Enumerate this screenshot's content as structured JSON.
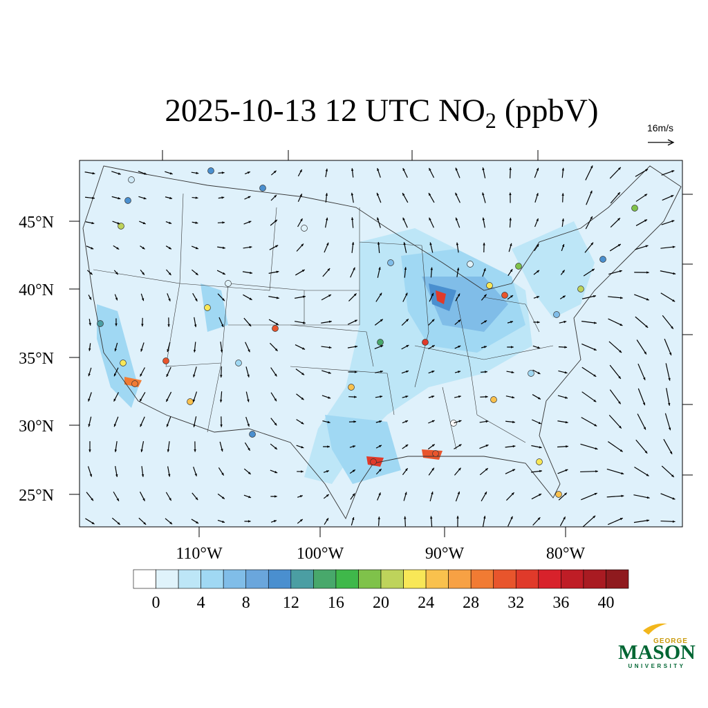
{
  "title": {
    "main": "2025-10-13 12 UTC NO",
    "subscript": "2",
    "unit": "(ppbV)"
  },
  "wind_reference": "16m/s",
  "lat_labels": [
    "45°N",
    "40°N",
    "35°N",
    "30°N",
    "25°N"
  ],
  "lon_labels": [
    "110°W",
    "100°W",
    "90°W",
    "80°W"
  ],
  "colorbar": {
    "levels": [
      0,
      2,
      4,
      6,
      8,
      10,
      12,
      14,
      16,
      18,
      20,
      22,
      24,
      26,
      28,
      30,
      32,
      34,
      36,
      38,
      40
    ],
    "ticks": [
      0,
      4,
      8,
      12,
      16,
      20,
      24,
      28,
      32,
      36,
      40
    ],
    "colors": [
      "#ffffff",
      "#e0f3fb",
      "#bde6f7",
      "#a0d8f3",
      "#80bde8",
      "#6aa6dc",
      "#4a8fcf",
      "#4b9ea3",
      "#48a86b",
      "#3fb84a",
      "#7fc24a",
      "#bed35b",
      "#f8e757",
      "#f9c14d",
      "#f7a144",
      "#f17b33",
      "#e8552c",
      "#e03a2a",
      "#d8222b",
      "#bf1d26",
      "#a91b22",
      "#8f1a1e"
    ]
  },
  "logo": {
    "top": "GEORGE",
    "main": "MASON",
    "bottom": "UNIVERSITY"
  }
}
